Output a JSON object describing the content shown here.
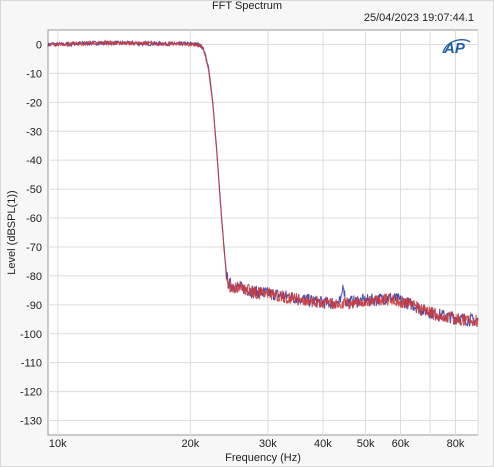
{
  "header": {
    "title": "FFT Spectrum",
    "timestamp": "25/04/2023 19:07:44.1"
  },
  "logo": {
    "text": "AP",
    "color": "#1f5fa8"
  },
  "chart_data": {
    "type": "line",
    "title": "FFT Spectrum",
    "xlabel": "Frequency (Hz)",
    "ylabel": "Level (dBSPL(1))",
    "x_scale": "log",
    "xlim": [
      9500,
      90000
    ],
    "ylim": [
      -135,
      5
    ],
    "x_ticks": [
      10000,
      20000,
      30000,
      40000,
      50000,
      60000,
      80000
    ],
    "x_tick_labels": [
      "10k",
      "20k",
      "30k",
      "40k",
      "50k",
      "60k",
      "80k"
    ],
    "y_ticks": [
      0,
      -10,
      -20,
      -30,
      -40,
      -50,
      -60,
      -70,
      -80,
      -90,
      -100,
      -110,
      -120,
      -130
    ],
    "y_tick_labels": [
      "0",
      "-10",
      "-20",
      "-30",
      "-40",
      "-50",
      "-60",
      "-70",
      "-80",
      "-90",
      "-100",
      "-110",
      "-120",
      "-130"
    ],
    "grid": true,
    "series": [
      {
        "color": "#3a3aa0",
        "x": [
          9500,
          10000,
          12000,
          14000,
          16000,
          18000,
          20000,
          21000,
          21500,
          22000,
          22500,
          23000,
          23500,
          24000,
          24300,
          24600,
          26000,
          28000,
          30000,
          33000,
          36000,
          39000,
          42000,
          44000,
          44500,
          45000,
          46000,
          50000,
          54000,
          57000,
          60000,
          64000,
          68000,
          72000,
          76000,
          80000,
          85000,
          90000
        ],
        "y": [
          0,
          0,
          0.5,
          0.5,
          0.3,
          0.3,
          0.2,
          0,
          -2,
          -8,
          -20,
          -38,
          -58,
          -75,
          -82,
          -83,
          -84,
          -85.5,
          -86,
          -87,
          -88,
          -89,
          -89.5,
          -89,
          -82,
          -89,
          -89,
          -88.5,
          -88,
          -87.5,
          -88.5,
          -90,
          -92,
          -93,
          -94,
          -94.5,
          -95,
          -95.5
        ]
      },
      {
        "color": "#cc3a3a",
        "x": [
          9500,
          10000,
          12000,
          14000,
          16000,
          18000,
          20000,
          21000,
          21500,
          22000,
          22500,
          23000,
          23500,
          24000,
          24300,
          24600,
          26000,
          28000,
          30000,
          33000,
          36000,
          39000,
          42000,
          44000,
          44500,
          45000,
          46000,
          50000,
          54000,
          57000,
          60000,
          64000,
          68000,
          72000,
          76000,
          80000,
          85000,
          90000
        ],
        "y": [
          0,
          0,
          0.5,
          0.4,
          0.3,
          0.3,
          0.1,
          -0.2,
          -2.5,
          -9,
          -21,
          -39,
          -59,
          -76,
          -82.5,
          -83.5,
          -84.2,
          -85.8,
          -86.3,
          -87.4,
          -88.3,
          -89.3,
          -89.8,
          -89.5,
          -89.5,
          -89.4,
          -89.2,
          -88.8,
          -88.3,
          -87.8,
          -88.9,
          -90.4,
          -92.3,
          -93.4,
          -94.3,
          -94.8,
          -95.3,
          -95.8
        ]
      }
    ]
  }
}
